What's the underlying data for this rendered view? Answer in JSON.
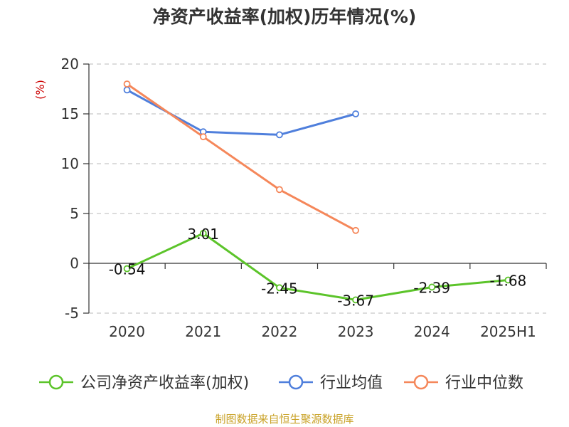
{
  "chart_data": {
    "type": "line",
    "title": "净资产收益率(加权)历年情况(%)",
    "ylabel": "(%)",
    "categories": [
      "2020",
      "2021",
      "2022",
      "2023",
      "2024",
      "2025H1"
    ],
    "yticks": [
      "20",
      "15",
      "10",
      "5",
      "0",
      "-5"
    ],
    "ylim": [
      -5,
      20
    ],
    "grid": true,
    "legend_position": "bottom",
    "series": [
      {
        "name": "公司净资产收益率(加权)",
        "color": "#5cc42a",
        "values": [
          -0.54,
          3.01,
          -2.45,
          -3.67,
          -2.39,
          -1.68
        ],
        "labels": [
          "-0.54",
          "3.01",
          "-2.45",
          "-3.67",
          "-2.39",
          "-1.68"
        ]
      },
      {
        "name": "行业均值",
        "color": "#4f7fdc",
        "values": [
          17.4,
          13.2,
          12.9,
          15.0,
          null,
          null
        ]
      },
      {
        "name": "行业中位数",
        "color": "#f5875a",
        "values": [
          18.0,
          12.7,
          7.4,
          3.3,
          null,
          null
        ]
      }
    ]
  },
  "source": "制图数据来自恒生聚源数据库"
}
